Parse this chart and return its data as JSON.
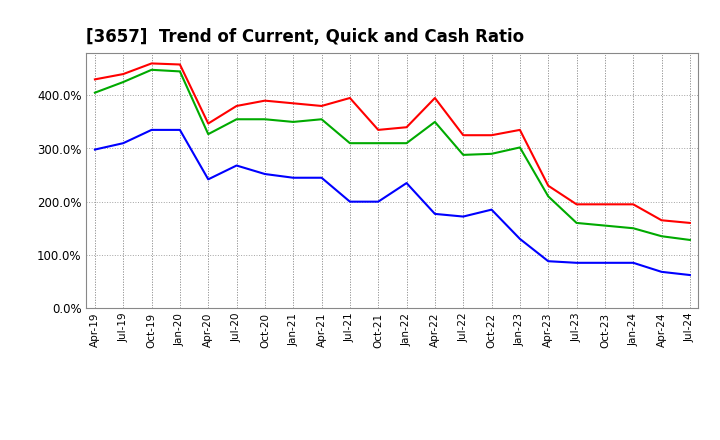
{
  "title": "[3657]  Trend of Current, Quick and Cash Ratio",
  "x_labels": [
    "Apr-19",
    "Jul-19",
    "Oct-19",
    "Jan-20",
    "Apr-20",
    "Jul-20",
    "Oct-20",
    "Jan-21",
    "Apr-21",
    "Jul-21",
    "Oct-21",
    "Jan-22",
    "Apr-22",
    "Jul-22",
    "Oct-22",
    "Jan-23",
    "Apr-23",
    "Jul-23",
    "Oct-23",
    "Jan-24",
    "Apr-24",
    "Jul-24"
  ],
  "current_ratio": [
    4.3,
    4.4,
    4.6,
    4.58,
    3.47,
    3.8,
    3.9,
    3.85,
    3.8,
    3.95,
    3.35,
    3.4,
    3.95,
    3.25,
    3.25,
    3.35,
    2.3,
    1.95,
    1.95,
    1.95,
    1.65,
    1.6
  ],
  "quick_ratio": [
    4.05,
    4.25,
    4.48,
    4.45,
    3.27,
    3.55,
    3.55,
    3.5,
    3.55,
    3.1,
    3.1,
    3.1,
    3.5,
    2.88,
    2.9,
    3.02,
    2.1,
    1.6,
    1.55,
    1.5,
    1.35,
    1.28
  ],
  "cash_ratio": [
    2.98,
    3.1,
    3.35,
    3.35,
    2.42,
    2.68,
    2.52,
    2.45,
    2.45,
    2.0,
    2.0,
    2.35,
    1.77,
    1.72,
    1.85,
    1.3,
    0.88,
    0.85,
    0.85,
    0.85,
    0.68,
    0.62
  ],
  "current_color": "#ff0000",
  "quick_color": "#00aa00",
  "cash_color": "#0000ff",
  "ylim": [
    0.0,
    4.8
  ],
  "yticks": [
    0.0,
    1.0,
    2.0,
    3.0,
    4.0
  ],
  "background_color": "#ffffff",
  "grid_color": "#999999",
  "title_fontsize": 12
}
